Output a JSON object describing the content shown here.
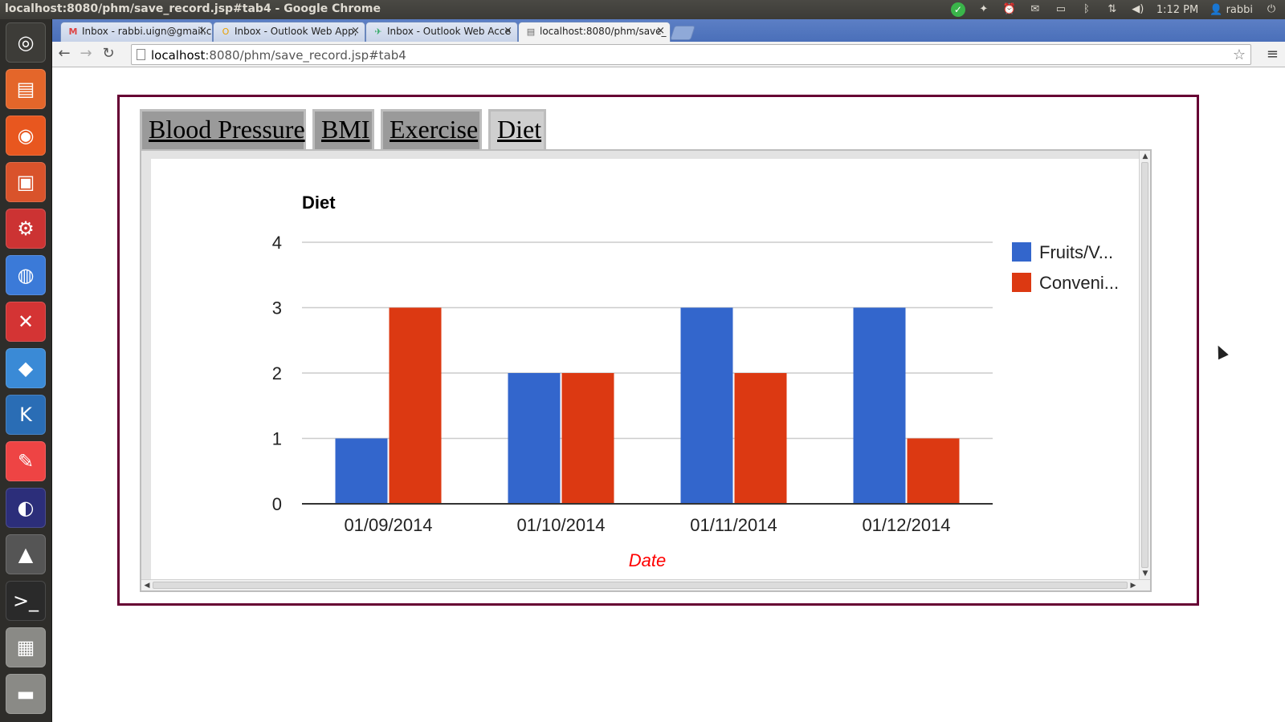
{
  "window": {
    "title": "localhost:8080/phm/save_record.jsp#tab4 - Google Chrome"
  },
  "panel": {
    "clock": "1:12 PM",
    "user": "rabbi",
    "icons": [
      "checkmark-icon",
      "dropbox-icon",
      "alarm-icon",
      "mail-icon",
      "battery-icon",
      "bluetooth-icon",
      "network-icon",
      "volume-icon",
      "user-icon",
      "power-icon"
    ]
  },
  "browser": {
    "tabs": [
      {
        "label": "Inbox - rabbi.uign@gmail.c",
        "icon": "gmail-icon"
      },
      {
        "label": "Inbox - Outlook Web App,",
        "icon": "outlook-icon"
      },
      {
        "label": "Inbox - Outlook Web Acce",
        "icon": "outlook-owa-icon"
      },
      {
        "label": "localhost:8080/phm/save_",
        "icon": "page-icon"
      }
    ],
    "url_host": "localhost",
    "url_path": ":8080/phm/save_record.jsp#tab4"
  },
  "page": {
    "tabs": [
      "Blood Pressure",
      "BMI",
      "Exercise",
      "Diet"
    ],
    "active_tab": "Diet"
  },
  "chart_data": {
    "type": "bar",
    "title": "Diet",
    "xlabel": "Date",
    "ylabel": "",
    "categories": [
      "01/09/2014",
      "01/10/2014",
      "01/11/2014",
      "01/12/2014"
    ],
    "series": [
      {
        "name": "Fruits/V...",
        "color": "#3366cc",
        "values": [
          1,
          2,
          3,
          3
        ]
      },
      {
        "name": "Conveni...",
        "color": "#dc3912",
        "values": [
          3,
          2,
          2,
          1
        ]
      }
    ],
    "ylim": [
      0,
      4
    ],
    "yticks": [
      "0",
      "1",
      "2",
      "3",
      "4"
    ],
    "grid": true,
    "legend": "right",
    "xlabel_color": "#ff0000"
  }
}
